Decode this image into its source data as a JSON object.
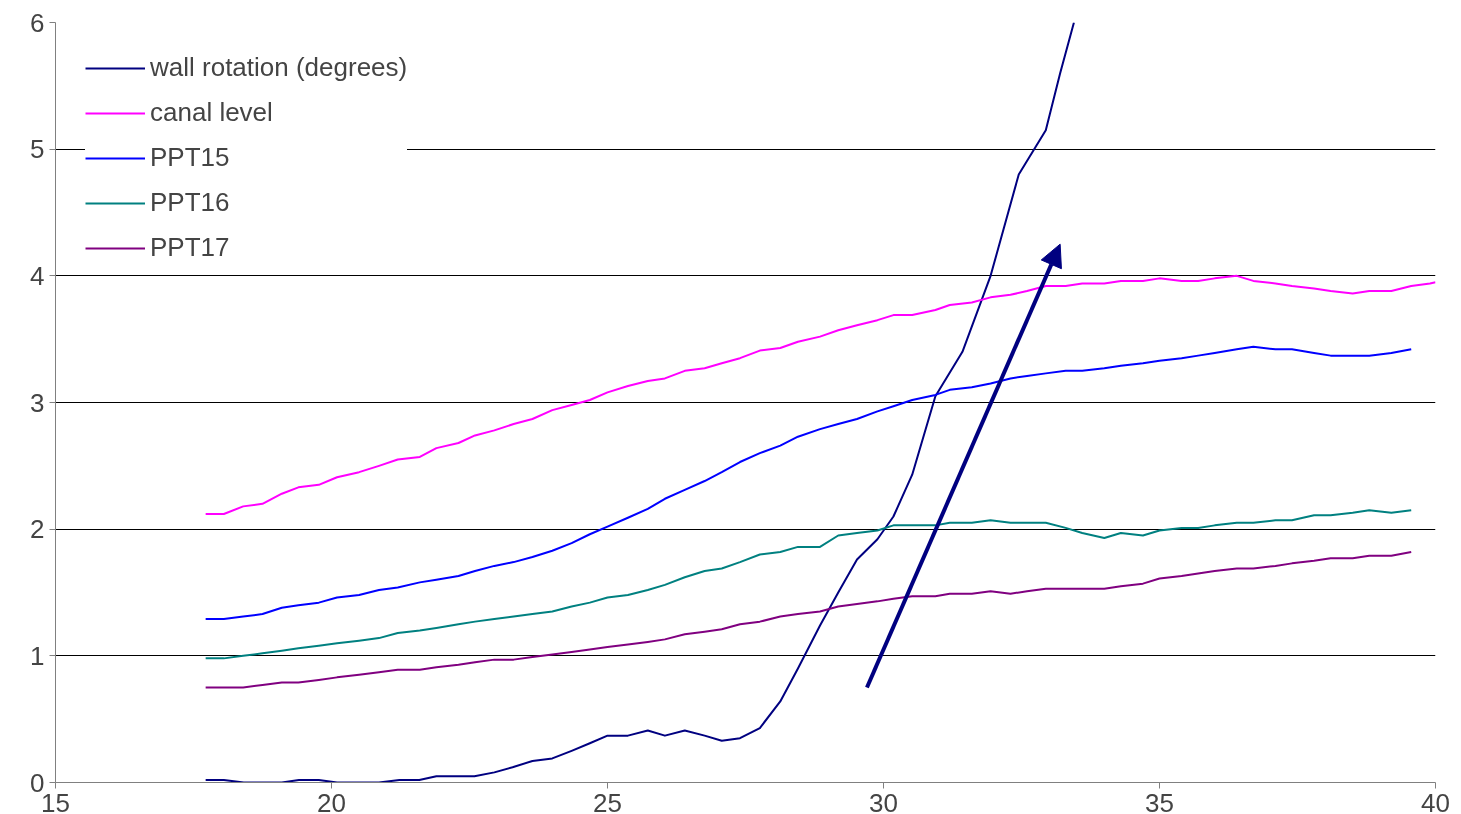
{
  "chart_data": {
    "type": "line",
    "xlim": [
      15,
      40
    ],
    "ylim": [
      0,
      6
    ],
    "xticks": [
      15,
      20,
      25,
      30,
      35,
      40
    ],
    "yticks": [
      0,
      1,
      2,
      3,
      4,
      5,
      6
    ],
    "grid": "y",
    "legend": "top left",
    "marker": "none",
    "line_style": "solid",
    "x": [
      17.72,
      18.05,
      18.4,
      18.75,
      19.1,
      19.4,
      19.77,
      20.1,
      20.5,
      20.86,
      21.2,
      21.6,
      21.9,
      22.3,
      22.6,
      22.95,
      23.3,
      23.64,
      24.0,
      24.35,
      24.68,
      25.0,
      25.37,
      25.73,
      26.04,
      26.4,
      26.76,
      27.07,
      27.4,
      27.76,
      28.13,
      28.45,
      28.85,
      29.18,
      29.52,
      29.89,
      30.18,
      30.52,
      30.94,
      31.2,
      31.6,
      31.94,
      32.3,
      32.6,
      32.94,
      33.3,
      33.6,
      34.0,
      34.3,
      34.7,
      35.0,
      35.4,
      35.7,
      36.0,
      36.4,
      36.7,
      37.1,
      37.4,
      37.8,
      38.1,
      38.5,
      38.8,
      39.2,
      39.56
    ],
    "series": [
      {
        "name": "wall rotation (degrees)",
        "color": "#000080",
        "x": [
          17.72,
          18.05,
          18.41,
          19.1,
          19.41,
          19.77,
          20.1,
          20.86,
          21.23,
          21.59,
          21.9,
          22.59,
          22.95,
          23.28,
          23.64,
          24.0,
          24.35,
          24.68,
          25.0,
          25.37,
          25.73,
          26.04,
          26.4,
          26.76,
          27.07,
          27.4,
          27.76,
          28.13,
          28.45,
          28.85,
          29.18,
          29.52,
          29.89,
          30.18,
          30.52,
          30.94,
          31.43,
          31.94,
          32.45,
          32.94,
          33.2,
          33.45
        ],
        "values": [
          0.02,
          0.02,
          0,
          0,
          0.02,
          0.02,
          0,
          0,
          0.02,
          0.02,
          0.05,
          0.05,
          0.08,
          0.12,
          0.17,
          0.19,
          0.25,
          0.31,
          0.37,
          0.37,
          0.41,
          0.37,
          0.41,
          0.37,
          0.33,
          0.35,
          0.43,
          0.64,
          0.9,
          1.24,
          1.5,
          1.76,
          1.92,
          2.1,
          2.43,
          3.05,
          3.4,
          4.0,
          4.8,
          5.15,
          5.6,
          6.0
        ]
      },
      {
        "name": "canal level",
        "color": "#ff00ff",
        "x": [
          17.72,
          18.05,
          18.4,
          18.75,
          19.1,
          19.4,
          19.77,
          20.1,
          20.5,
          20.86,
          21.2,
          21.6,
          21.9,
          22.3,
          22.6,
          22.95,
          23.3,
          23.64,
          24.0,
          24.35,
          24.68,
          25.0,
          25.37,
          25.73,
          26.04,
          26.4,
          26.76,
          27.07,
          27.4,
          27.76,
          28.13,
          28.45,
          28.85,
          29.18,
          29.52,
          29.89,
          30.18,
          30.52,
          30.94,
          31.2,
          31.6,
          31.94,
          32.3,
          32.6,
          32.94,
          33.3,
          33.6,
          34.0,
          34.3,
          34.7,
          35.0,
          35.4,
          35.7,
          36.0,
          36.4,
          36.7,
          37.1,
          37.4,
          37.8,
          38.1,
          38.5,
          38.8,
          39.2,
          39.56,
          39.9,
          40.0
        ],
        "values": [
          2.12,
          2.12,
          2.18,
          2.2,
          2.28,
          2.33,
          2.35,
          2.41,
          2.45,
          2.5,
          2.55,
          2.57,
          2.64,
          2.68,
          2.74,
          2.78,
          2.83,
          2.87,
          2.94,
          2.98,
          3.02,
          3.08,
          3.13,
          3.17,
          3.19,
          3.25,
          3.27,
          3.31,
          3.35,
          3.41,
          3.43,
          3.48,
          3.52,
          3.57,
          3.61,
          3.65,
          3.69,
          3.69,
          3.73,
          3.77,
          3.79,
          3.83,
          3.85,
          3.88,
          3.92,
          3.92,
          3.94,
          3.94,
          3.96,
          3.96,
          3.98,
          3.96,
          3.96,
          3.98,
          4.0,
          3.96,
          3.94,
          3.92,
          3.9,
          3.88,
          3.86,
          3.88,
          3.88,
          3.92,
          3.94,
          3.95
        ]
      },
      {
        "name": "PPT15",
        "color": "#0000ff",
        "values": [
          1.29,
          1.29,
          1.31,
          1.33,
          1.38,
          1.4,
          1.42,
          1.46,
          1.48,
          1.52,
          1.54,
          1.58,
          1.6,
          1.63,
          1.67,
          1.71,
          1.74,
          1.78,
          1.83,
          1.89,
          1.96,
          2.02,
          2.09,
          2.16,
          2.24,
          2.31,
          2.38,
          2.45,
          2.53,
          2.6,
          2.66,
          2.73,
          2.79,
          2.83,
          2.87,
          2.93,
          2.97,
          3.02,
          3.06,
          3.1,
          3.12,
          3.15,
          3.19,
          3.21,
          3.23,
          3.25,
          3.25,
          3.27,
          3.29,
          3.31,
          3.33,
          3.35,
          3.37,
          3.39,
          3.42,
          3.44,
          3.42,
          3.42,
          3.39,
          3.37,
          3.37,
          3.37,
          3.39,
          3.42
        ]
      },
      {
        "name": "PPT16",
        "color": "#008080",
        "values": [
          0.98,
          0.98,
          1.0,
          1.02,
          1.04,
          1.06,
          1.08,
          1.1,
          1.12,
          1.14,
          1.18,
          1.2,
          1.22,
          1.25,
          1.27,
          1.29,
          1.31,
          1.33,
          1.35,
          1.39,
          1.42,
          1.46,
          1.48,
          1.52,
          1.56,
          1.62,
          1.67,
          1.69,
          1.74,
          1.8,
          1.82,
          1.86,
          1.86,
          1.95,
          1.97,
          1.99,
          2.03,
          2.03,
          2.03,
          2.05,
          2.05,
          2.07,
          2.05,
          2.05,
          2.05,
          2.01,
          1.97,
          1.93,
          1.97,
          1.95,
          1.99,
          2.01,
          2.01,
          2.03,
          2.05,
          2.05,
          2.07,
          2.07,
          2.11,
          2.11,
          2.13,
          2.15,
          2.13,
          2.15
        ]
      },
      {
        "name": "PPT17",
        "color": "#800080",
        "values": [
          0.75,
          0.75,
          0.75,
          0.77,
          0.79,
          0.79,
          0.81,
          0.83,
          0.85,
          0.87,
          0.89,
          0.89,
          0.91,
          0.93,
          0.95,
          0.97,
          0.97,
          0.99,
          1.01,
          1.03,
          1.05,
          1.07,
          1.09,
          1.11,
          1.13,
          1.17,
          1.19,
          1.21,
          1.25,
          1.27,
          1.31,
          1.33,
          1.35,
          1.39,
          1.41,
          1.43,
          1.45,
          1.47,
          1.47,
          1.49,
          1.49,
          1.51,
          1.49,
          1.51,
          1.53,
          1.53,
          1.53,
          1.53,
          1.55,
          1.57,
          1.61,
          1.63,
          1.65,
          1.67,
          1.69,
          1.69,
          1.71,
          1.73,
          1.75,
          1.77,
          1.77,
          1.79,
          1.79,
          1.82
        ]
      }
    ]
  }
}
